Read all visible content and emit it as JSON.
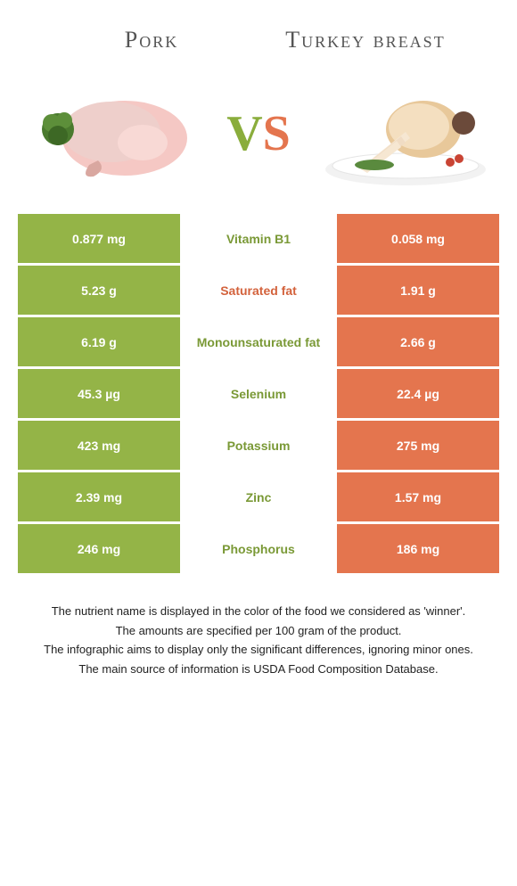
{
  "colors": {
    "left": "#94b447",
    "right": "#e4754e",
    "nutrient_winner_left": "#7a9936",
    "nutrient_winner_right": "#d3623c"
  },
  "header": {
    "left_title": "Pork",
    "right_title": "Turkey breast"
  },
  "vs": {
    "v": "V",
    "s": "S"
  },
  "rows": [
    {
      "left": "0.877 mg",
      "nutrient": "Vitamin B1",
      "right": "0.058 mg",
      "winner": "left"
    },
    {
      "left": "5.23 g",
      "nutrient": "Saturated fat",
      "right": "1.91 g",
      "winner": "right"
    },
    {
      "left": "6.19 g",
      "nutrient": "Monounsaturated fat",
      "right": "2.66 g",
      "winner": "left"
    },
    {
      "left": "45.3 µg",
      "nutrient": "Selenium",
      "right": "22.4 µg",
      "winner": "left"
    },
    {
      "left": "423 mg",
      "nutrient": "Potassium",
      "right": "275 mg",
      "winner": "left"
    },
    {
      "left": "2.39 mg",
      "nutrient": "Zinc",
      "right": "1.57 mg",
      "winner": "left"
    },
    {
      "left": "246 mg",
      "nutrient": "Phosphorus",
      "right": "186 mg",
      "winner": "left"
    }
  ],
  "footnotes": [
    "The nutrient name is displayed in the color of the food we considered as 'winner'.",
    "The amounts are specified per 100 gram of the product.",
    "The infographic aims to display only the significant differences, ignoring minor ones.",
    "The main source of information is USDA Food Composition Database."
  ]
}
